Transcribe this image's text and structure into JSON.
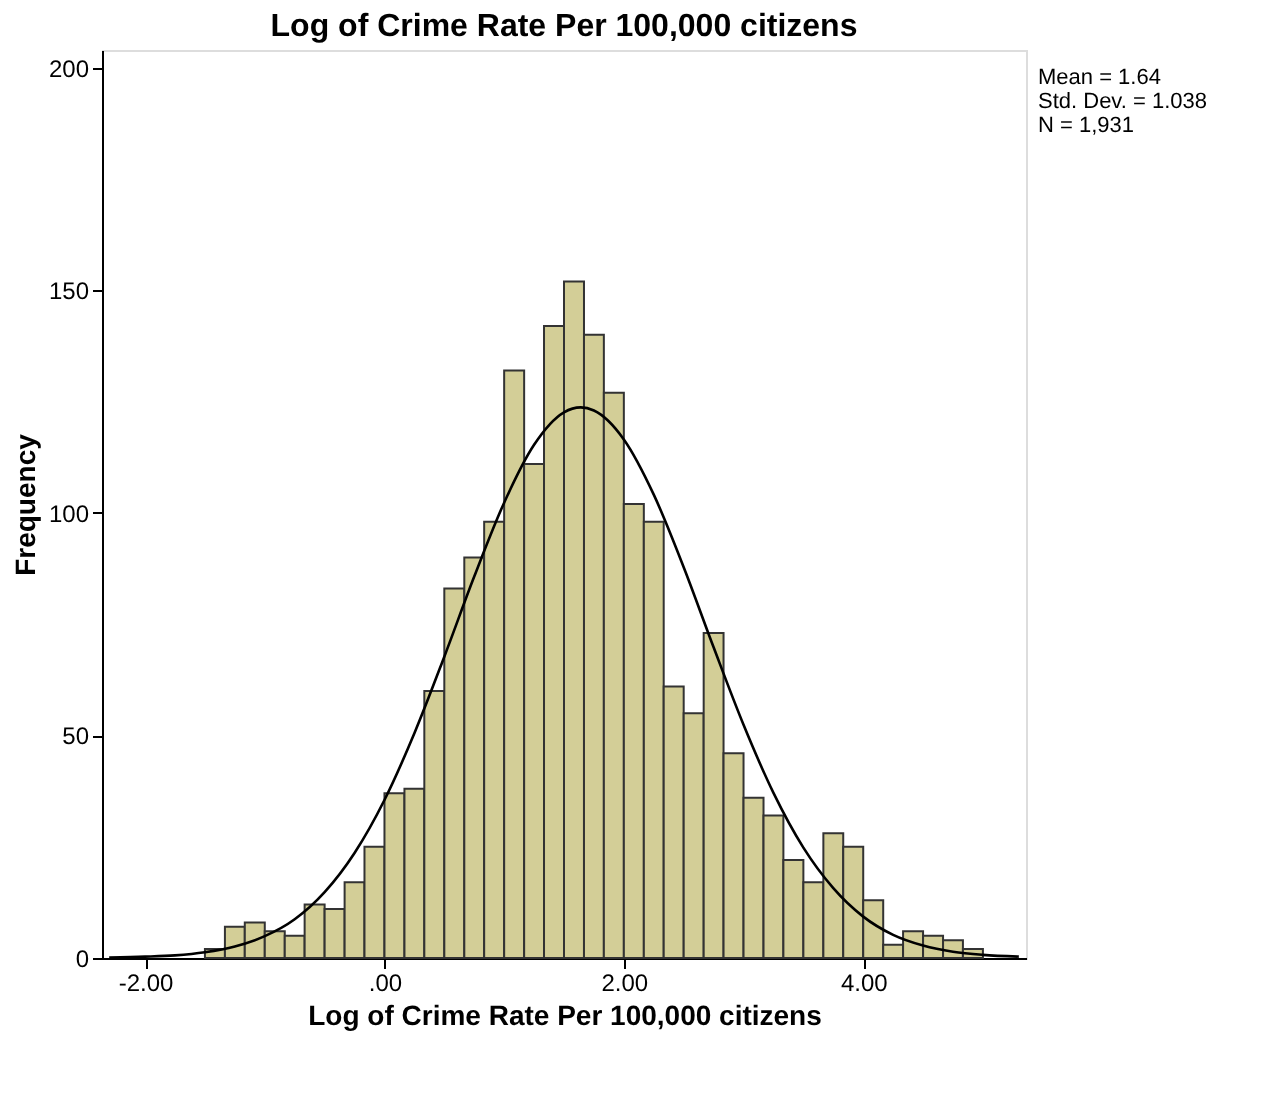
{
  "chart_data": {
    "type": "histogram",
    "title": "Log of Crime Rate Per 100,000 citizens",
    "xlabel": "Log of Crime Rate Per 100,000 citizens",
    "ylabel": "Frequency",
    "series": [
      {
        "color": "#d3ce97",
        "bins": [
          -1.5,
          -1.333,
          -1.167,
          -1.0,
          -0.833,
          -0.667,
          -0.5,
          -0.333,
          -0.167,
          0.0,
          0.167,
          0.333,
          0.5,
          0.667,
          0.833,
          1.0,
          1.167,
          1.333,
          1.5,
          1.667,
          1.833,
          2.0,
          2.167,
          2.333,
          2.5,
          2.667,
          2.833,
          3.0,
          3.167,
          3.333,
          3.5,
          3.667,
          3.833,
          4.0,
          4.167,
          4.333,
          4.5,
          4.667,
          4.833,
          5.0
        ],
        "values": [
          2,
          7,
          8,
          6,
          5,
          12,
          11,
          17,
          25,
          37,
          38,
          60,
          83,
          90,
          98,
          132,
          111,
          142,
          152,
          140,
          127,
          102,
          98,
          61,
          55,
          73,
          46,
          36,
          32,
          22,
          17,
          28,
          25,
          13,
          3,
          6,
          5,
          4,
          2
        ]
      },
      {
        "type": "line",
        "color": "#000000",
        "x": [
          -2.3,
          -2.0,
          -1.75,
          -1.5,
          -1.25,
          -1.0,
          -0.75,
          -0.5,
          -0.25,
          0.0,
          0.25,
          0.5,
          0.75,
          1.0,
          1.25,
          1.5,
          1.64,
          1.75,
          2.0,
          2.25,
          2.5,
          2.75,
          3.0,
          3.25,
          3.5,
          3.75,
          4.0,
          4.25,
          4.5,
          4.75,
          5.0,
          5.3
        ],
        "values": [
          0.1,
          0.3,
          0.6,
          1.3,
          2.6,
          4.9,
          8.7,
          14.8,
          23.6,
          35.5,
          50.5,
          67.7,
          85.7,
          102.3,
          115.3,
          122.6,
          123.7,
          123.0,
          116.5,
          104.1,
          87.8,
          69.8,
          52.4,
          37.1,
          24.8,
          15.7,
          9.3,
          5.2,
          2.8,
          1.4,
          0.7,
          0.3
        ]
      }
    ],
    "xlim": [
      -2.36,
      5.36
    ],
    "xticks": [
      {
        "value": -2,
        "label": "-2.00"
      },
      {
        "value": 0,
        "label": ".00"
      },
      {
        "value": 2,
        "label": "2.00"
      },
      {
        "value": 4,
        "label": "4.00"
      }
    ],
    "ylim": [
      0,
      204
    ],
    "yticks": [
      0,
      50,
      100,
      150,
      200
    ],
    "grid": false,
    "annotations": [
      "Mean = 1.64",
      "Std. Dev. = 1.038",
      "N = 1,931"
    ]
  }
}
